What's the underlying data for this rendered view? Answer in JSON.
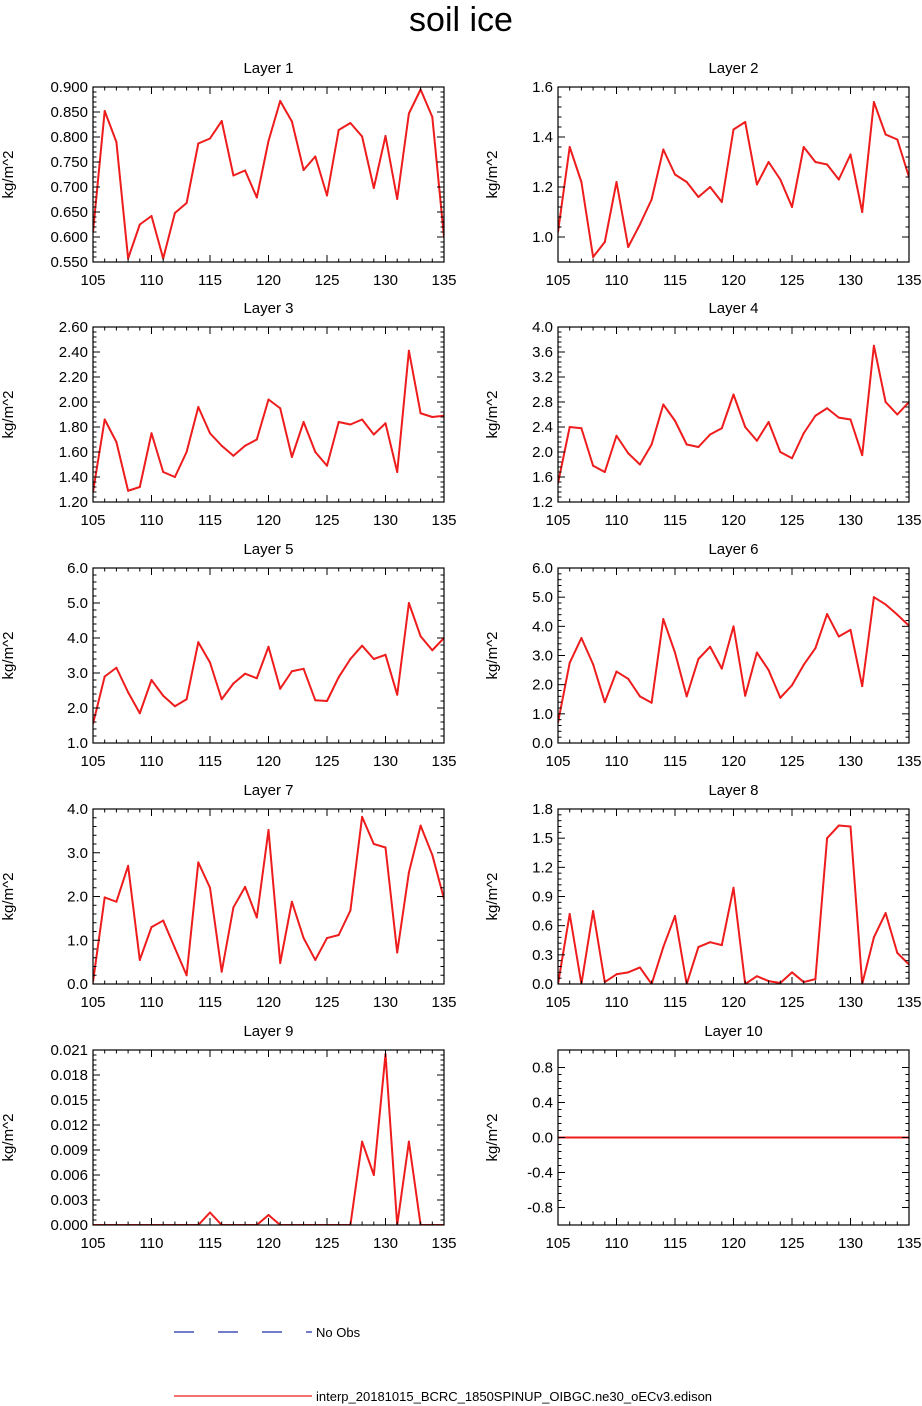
{
  "figure": {
    "title": "soil ice",
    "legend": [
      {
        "label": "No Obs",
        "color": "#1f2fa8",
        "style": "dashed"
      },
      {
        "label": "interp_20181015_BCRC_1850SPINUP_OIBGC.ne30_oECv3.edison",
        "color": "#ee1c1c",
        "style": "solid"
      }
    ],
    "line_color": "#ee1c1c"
  },
  "chart_data": [
    {
      "type": "line",
      "title": "Layer 1",
      "xlabel": "",
      "ylabel": "kg/m^2",
      "xlim": [
        105,
        135
      ],
      "ylim": [
        0.55,
        0.9
      ],
      "xticks": [
        105,
        110,
        115,
        120,
        125,
        130,
        135
      ],
      "xtick_labels": [
        "105",
        "110",
        "115",
        "120",
        "125",
        "130",
        "135"
      ],
      "yticks": [
        0.55,
        0.6,
        0.65,
        0.7,
        0.75,
        0.8,
        0.85,
        0.9
      ],
      "ytick_labels": [
        "0.550",
        "0.600",
        "0.650",
        "0.700",
        "0.750",
        "0.800",
        "0.850",
        "0.900"
      ],
      "x": [
        105,
        106,
        107,
        108,
        109,
        110,
        111,
        112,
        113,
        114,
        115,
        116,
        117,
        118,
        119,
        120,
        121,
        122,
        123,
        124,
        125,
        126,
        127,
        128,
        129,
        130,
        131,
        132,
        133,
        134,
        135
      ],
      "series": [
        {
          "values": [
            0.61,
            0.852,
            0.79,
            0.557,
            0.625,
            0.642,
            0.557,
            0.648,
            0.668,
            0.787,
            0.797,
            0.832,
            0.723,
            0.733,
            0.679,
            0.792,
            0.872,
            0.831,
            0.734,
            0.761,
            0.683,
            0.814,
            0.828,
            0.801,
            0.698,
            0.802,
            0.676,
            0.847,
            0.895,
            0.84,
            0.6
          ]
        }
      ]
    },
    {
      "type": "line",
      "title": "Layer 2",
      "xlabel": "",
      "ylabel": "kg/m^2",
      "xlim": [
        105,
        135
      ],
      "ylim": [
        0.9,
        1.6
      ],
      "xticks": [
        105,
        110,
        115,
        120,
        125,
        130,
        135
      ],
      "xtick_labels": [
        "105",
        "110",
        "115",
        "120",
        "125",
        "130",
        "135"
      ],
      "yticks": [
        1.0,
        1.2,
        1.4,
        1.6
      ],
      "ytick_labels": [
        "1.0",
        "1.2",
        "1.4",
        "1.6"
      ],
      "x": [
        105,
        106,
        107,
        108,
        109,
        110,
        111,
        112,
        113,
        114,
        115,
        116,
        117,
        118,
        119,
        120,
        121,
        122,
        123,
        124,
        125,
        126,
        127,
        128,
        129,
        130,
        131,
        132,
        133,
        134,
        135
      ],
      "series": [
        {
          "values": [
            1.02,
            1.36,
            1.22,
            0.92,
            0.98,
            1.22,
            0.96,
            1.05,
            1.15,
            1.35,
            1.25,
            1.22,
            1.16,
            1.2,
            1.14,
            1.43,
            1.46,
            1.21,
            1.3,
            1.23,
            1.12,
            1.36,
            1.3,
            1.29,
            1.23,
            1.33,
            1.1,
            1.54,
            1.41,
            1.39,
            1.24
          ]
        }
      ]
    },
    {
      "type": "line",
      "title": "Layer 3",
      "xlabel": "",
      "ylabel": "kg/m^2",
      "xlim": [
        105,
        135
      ],
      "ylim": [
        1.2,
        2.6
      ],
      "xticks": [
        105,
        110,
        115,
        120,
        125,
        130,
        135
      ],
      "xtick_labels": [
        "105",
        "110",
        "115",
        "120",
        "125",
        "130",
        "135"
      ],
      "yticks": [
        1.2,
        1.4,
        1.6,
        1.8,
        2.0,
        2.2,
        2.4,
        2.6
      ],
      "ytick_labels": [
        "1.20",
        "1.40",
        "1.60",
        "1.80",
        "2.00",
        "2.20",
        "2.40",
        "2.60"
      ],
      "x": [
        105,
        106,
        107,
        108,
        109,
        110,
        111,
        112,
        113,
        114,
        115,
        116,
        117,
        118,
        119,
        120,
        121,
        122,
        123,
        124,
        125,
        126,
        127,
        128,
        129,
        130,
        131,
        132,
        133,
        134,
        135
      ],
      "series": [
        {
          "values": [
            1.28,
            1.86,
            1.68,
            1.29,
            1.32,
            1.75,
            1.44,
            1.4,
            1.6,
            1.96,
            1.75,
            1.65,
            1.57,
            1.65,
            1.7,
            2.02,
            1.95,
            1.56,
            1.84,
            1.6,
            1.49,
            1.84,
            1.82,
            1.86,
            1.74,
            1.83,
            1.44,
            2.41,
            1.91,
            1.88,
            1.89
          ]
        }
      ]
    },
    {
      "type": "line",
      "title": "Layer 4",
      "xlabel": "",
      "ylabel": "kg/m^2",
      "xlim": [
        105,
        135
      ],
      "ylim": [
        1.2,
        4.0
      ],
      "xticks": [
        105,
        110,
        115,
        120,
        125,
        130,
        135
      ],
      "xtick_labels": [
        "105",
        "110",
        "115",
        "120",
        "125",
        "130",
        "135"
      ],
      "yticks": [
        1.2,
        1.6,
        2.0,
        2.4,
        2.8,
        3.2,
        3.6,
        4.0
      ],
      "ytick_labels": [
        "1.2",
        "1.6",
        "2.0",
        "2.4",
        "2.8",
        "3.2",
        "3.6",
        "4.0"
      ],
      "x": [
        105,
        106,
        107,
        108,
        109,
        110,
        111,
        112,
        113,
        114,
        115,
        116,
        117,
        118,
        119,
        120,
        121,
        122,
        123,
        124,
        125,
        126,
        127,
        128,
        129,
        130,
        131,
        132,
        133,
        134,
        135
      ],
      "series": [
        {
          "values": [
            1.5,
            2.4,
            2.38,
            1.78,
            1.68,
            2.26,
            1.98,
            1.8,
            2.12,
            2.76,
            2.5,
            2.12,
            2.08,
            2.28,
            2.38,
            2.92,
            2.4,
            2.18,
            2.48,
            2.0,
            1.9,
            2.3,
            2.58,
            2.7,
            2.55,
            2.52,
            1.95,
            3.7,
            2.8,
            2.6,
            2.8
          ]
        }
      ]
    },
    {
      "type": "line",
      "title": "Layer 5",
      "xlabel": "",
      "ylabel": "kg/m^2",
      "xlim": [
        105,
        135
      ],
      "ylim": [
        1.0,
        6.0
      ],
      "xticks": [
        105,
        110,
        115,
        120,
        125,
        130,
        135
      ],
      "xtick_labels": [
        "105",
        "110",
        "115",
        "120",
        "125",
        "130",
        "135"
      ],
      "yticks": [
        1.0,
        2.0,
        3.0,
        4.0,
        5.0,
        6.0
      ],
      "ytick_labels": [
        "1.0",
        "2.0",
        "3.0",
        "4.0",
        "5.0",
        "6.0"
      ],
      "x": [
        105,
        106,
        107,
        108,
        109,
        110,
        111,
        112,
        113,
        114,
        115,
        116,
        117,
        118,
        119,
        120,
        121,
        122,
        123,
        124,
        125,
        126,
        127,
        128,
        129,
        130,
        131,
        132,
        133,
        134,
        135
      ],
      "series": [
        {
          "values": [
            1.55,
            2.9,
            3.15,
            2.45,
            1.85,
            2.8,
            2.35,
            2.05,
            2.25,
            3.88,
            3.3,
            2.25,
            2.7,
            2.98,
            2.85,
            3.75,
            2.55,
            3.05,
            3.12,
            2.22,
            2.2,
            2.88,
            3.4,
            3.78,
            3.4,
            3.52,
            2.38,
            5.0,
            4.05,
            3.65,
            4.0
          ]
        }
      ]
    },
    {
      "type": "line",
      "title": "Layer 6",
      "xlabel": "",
      "ylabel": "kg/m^2",
      "xlim": [
        105,
        135
      ],
      "ylim": [
        0.0,
        6.0
      ],
      "xticks": [
        105,
        110,
        115,
        120,
        125,
        130,
        135
      ],
      "xtick_labels": [
        "105",
        "110",
        "115",
        "120",
        "125",
        "130",
        "135"
      ],
      "yticks": [
        0.0,
        1.0,
        2.0,
        3.0,
        4.0,
        5.0,
        6.0
      ],
      "ytick_labels": [
        "0.0",
        "1.0",
        "2.0",
        "3.0",
        "4.0",
        "5.0",
        "6.0"
      ],
      "x": [
        105,
        106,
        107,
        108,
        109,
        110,
        111,
        112,
        113,
        114,
        115,
        116,
        117,
        118,
        119,
        120,
        121,
        122,
        123,
        124,
        125,
        126,
        127,
        128,
        129,
        130,
        131,
        132,
        133,
        134,
        135
      ],
      "series": [
        {
          "values": [
            0.7,
            2.75,
            3.6,
            2.7,
            1.4,
            2.45,
            2.2,
            1.6,
            1.38,
            4.25,
            3.1,
            1.6,
            2.88,
            3.3,
            2.55,
            4.0,
            1.62,
            3.1,
            2.5,
            1.55,
            1.98,
            2.68,
            3.25,
            4.42,
            3.65,
            3.88,
            1.95,
            5.0,
            4.75,
            4.4,
            4.02
          ]
        }
      ]
    },
    {
      "type": "line",
      "title": "Layer 7",
      "xlabel": "",
      "ylabel": "kg/m^2",
      "xlim": [
        105,
        135
      ],
      "ylim": [
        0.0,
        4.0
      ],
      "xticks": [
        105,
        110,
        115,
        120,
        125,
        130,
        135
      ],
      "xtick_labels": [
        "105",
        "110",
        "115",
        "120",
        "125",
        "130",
        "135"
      ],
      "yticks": [
        0.0,
        1.0,
        2.0,
        3.0,
        4.0
      ],
      "ytick_labels": [
        "0.0",
        "1.0",
        "2.0",
        "3.0",
        "4.0"
      ],
      "x": [
        105,
        106,
        107,
        108,
        109,
        110,
        111,
        112,
        113,
        114,
        115,
        116,
        117,
        118,
        119,
        120,
        121,
        122,
        123,
        124,
        125,
        126,
        127,
        128,
        129,
        130,
        131,
        132,
        133,
        134,
        135
      ],
      "series": [
        {
          "values": [
            0.05,
            1.98,
            1.88,
            2.7,
            0.55,
            1.3,
            1.45,
            0.82,
            0.2,
            2.78,
            2.2,
            0.28,
            1.75,
            2.22,
            1.52,
            3.52,
            0.48,
            1.88,
            1.05,
            0.55,
            1.05,
            1.12,
            1.68,
            3.82,
            3.2,
            3.12,
            0.72,
            2.55,
            3.62,
            2.95,
            1.95
          ]
        }
      ]
    },
    {
      "type": "line",
      "title": "Layer 8",
      "xlabel": "",
      "ylabel": "kg/m^2",
      "xlim": [
        105,
        135
      ],
      "ylim": [
        0.0,
        1.8
      ],
      "xticks": [
        105,
        110,
        115,
        120,
        125,
        130,
        135
      ],
      "xtick_labels": [
        "105",
        "110",
        "115",
        "120",
        "125",
        "130",
        "135"
      ],
      "yticks": [
        0.0,
        0.3,
        0.6,
        0.9,
        1.2,
        1.5,
        1.8
      ],
      "ytick_labels": [
        "0.0",
        "0.3",
        "0.6",
        "0.9",
        "1.2",
        "1.5",
        "1.8"
      ],
      "x": [
        105,
        106,
        107,
        108,
        109,
        110,
        111,
        112,
        113,
        114,
        115,
        116,
        117,
        118,
        119,
        120,
        121,
        122,
        123,
        124,
        125,
        126,
        127,
        128,
        129,
        130,
        131,
        132,
        133,
        134,
        135
      ],
      "series": [
        {
          "values": [
            0.0,
            0.72,
            0.0,
            0.75,
            0.02,
            0.1,
            0.12,
            0.17,
            0.0,
            0.38,
            0.7,
            0.0,
            0.38,
            0.43,
            0.4,
            0.99,
            0.0,
            0.08,
            0.03,
            0.01,
            0.12,
            0.02,
            0.05,
            1.5,
            1.63,
            1.62,
            0.0,
            0.48,
            0.73,
            0.32,
            0.2
          ]
        }
      ]
    },
    {
      "type": "line",
      "title": "Layer 9",
      "xlabel": "",
      "ylabel": "kg/m^2",
      "xlim": [
        105,
        135
      ],
      "ylim": [
        0.0,
        0.021
      ],
      "xticks": [
        105,
        110,
        115,
        120,
        125,
        130,
        135
      ],
      "xtick_labels": [
        "105",
        "110",
        "115",
        "120",
        "125",
        "130",
        "135"
      ],
      "yticks": [
        0.0,
        0.003,
        0.006,
        0.009,
        0.012,
        0.015,
        0.018,
        0.021
      ],
      "ytick_labels": [
        "0.000",
        "0.003",
        "0.006",
        "0.009",
        "0.012",
        "0.015",
        "0.018",
        "0.021"
      ],
      "x": [
        105,
        106,
        107,
        108,
        109,
        110,
        111,
        112,
        113,
        114,
        115,
        116,
        117,
        118,
        119,
        120,
        121,
        122,
        123,
        124,
        125,
        126,
        127,
        128,
        129,
        130,
        131,
        132,
        133,
        134,
        135
      ],
      "series": [
        {
          "values": [
            0,
            0,
            0,
            0,
            0,
            0,
            0,
            0,
            0,
            0,
            0.0015,
            0,
            0,
            0,
            0,
            0.0012,
            0,
            0,
            0,
            0,
            0,
            0,
            0,
            0.01,
            0.006,
            0.0205,
            0,
            0.01,
            0,
            0,
            0
          ]
        }
      ]
    },
    {
      "type": "line",
      "title": "Layer 10",
      "xlabel": "",
      "ylabel": "kg/m^2",
      "xlim": [
        105,
        135
      ],
      "ylim": [
        -1.0,
        1.0
      ],
      "xticks": [
        105,
        110,
        115,
        120,
        125,
        130,
        135
      ],
      "xtick_labels": [
        "105",
        "110",
        "115",
        "120",
        "125",
        "130",
        "135"
      ],
      "yticks": [
        -0.8,
        -0.4,
        0.0,
        0.4,
        0.8
      ],
      "ytick_labels": [
        "-0.8",
        "-0.4",
        "0.0",
        "0.4",
        "0.8"
      ],
      "x": [
        105,
        106,
        107,
        108,
        109,
        110,
        111,
        112,
        113,
        114,
        115,
        116,
        117,
        118,
        119,
        120,
        121,
        122,
        123,
        124,
        125,
        126,
        127,
        128,
        129,
        130,
        131,
        132,
        133,
        134,
        135
      ],
      "series": [
        {
          "values": [
            0,
            0,
            0,
            0,
            0,
            0,
            0,
            0,
            0,
            0,
            0,
            0,
            0,
            0,
            0,
            0,
            0,
            0,
            0,
            0,
            0,
            0,
            0,
            0,
            0,
            0,
            0,
            0,
            0,
            0,
            0
          ]
        }
      ]
    }
  ]
}
